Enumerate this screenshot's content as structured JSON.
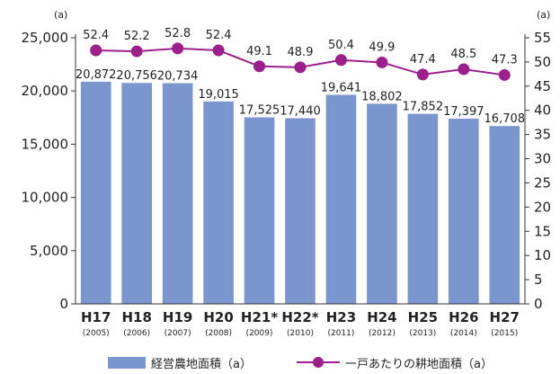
{
  "chart_data": {
    "type": "bar",
    "left_unit": "(a)",
    "right_unit": "(a)",
    "categories": [
      "H17",
      "H18",
      "H19",
      "H20",
      "H21*",
      "H22*",
      "H23",
      "H24",
      "H25",
      "H26",
      "H27"
    ],
    "years": [
      "(2005)",
      "(2006)",
      "(2007)",
      "(2008)",
      "(2009)",
      "(2010)",
      "(2011)",
      "(2012)",
      "(2013)",
      "(2014)",
      "(2015)"
    ],
    "y_left": {
      "min": 0,
      "max": 25000,
      "ticks": [
        "0",
        "5,000",
        "10,000",
        "15,000",
        "20,000",
        "25,000"
      ]
    },
    "y_right": {
      "min": 0,
      "max": 55,
      "ticks": [
        "0",
        "5",
        "10",
        "15",
        "20",
        "25",
        "30",
        "35",
        "40",
        "45",
        "50",
        "55"
      ]
    },
    "series": [
      {
        "name": "経営農地面積（a）",
        "type": "bar",
        "axis": "left",
        "color": "#7b96cf",
        "values": [
          20872,
          20756,
          20734,
          19015,
          17525,
          17440,
          19641,
          18802,
          17852,
          17397,
          16708
        ],
        "labels": [
          "20,872",
          "20,756",
          "20,734",
          "19,015",
          "17,525",
          "17,440",
          "19,641",
          "18,802",
          "17,852",
          "17,397",
          "16,708"
        ]
      },
      {
        "name": "一戸あたりの耕地面積（a）",
        "type": "line",
        "axis": "right",
        "color": "#9c1f8c",
        "values": [
          52.4,
          52.2,
          52.8,
          52.4,
          49.1,
          48.9,
          50.4,
          49.9,
          47.4,
          48.5,
          47.3
        ],
        "labels": [
          "52.4",
          "52.2",
          "52.8",
          "52.4",
          "49.1",
          "48.9",
          "50.4",
          "49.9",
          "47.4",
          "48.5",
          "47.3"
        ]
      }
    ],
    "grid": false,
    "legend_position": "bottom"
  }
}
